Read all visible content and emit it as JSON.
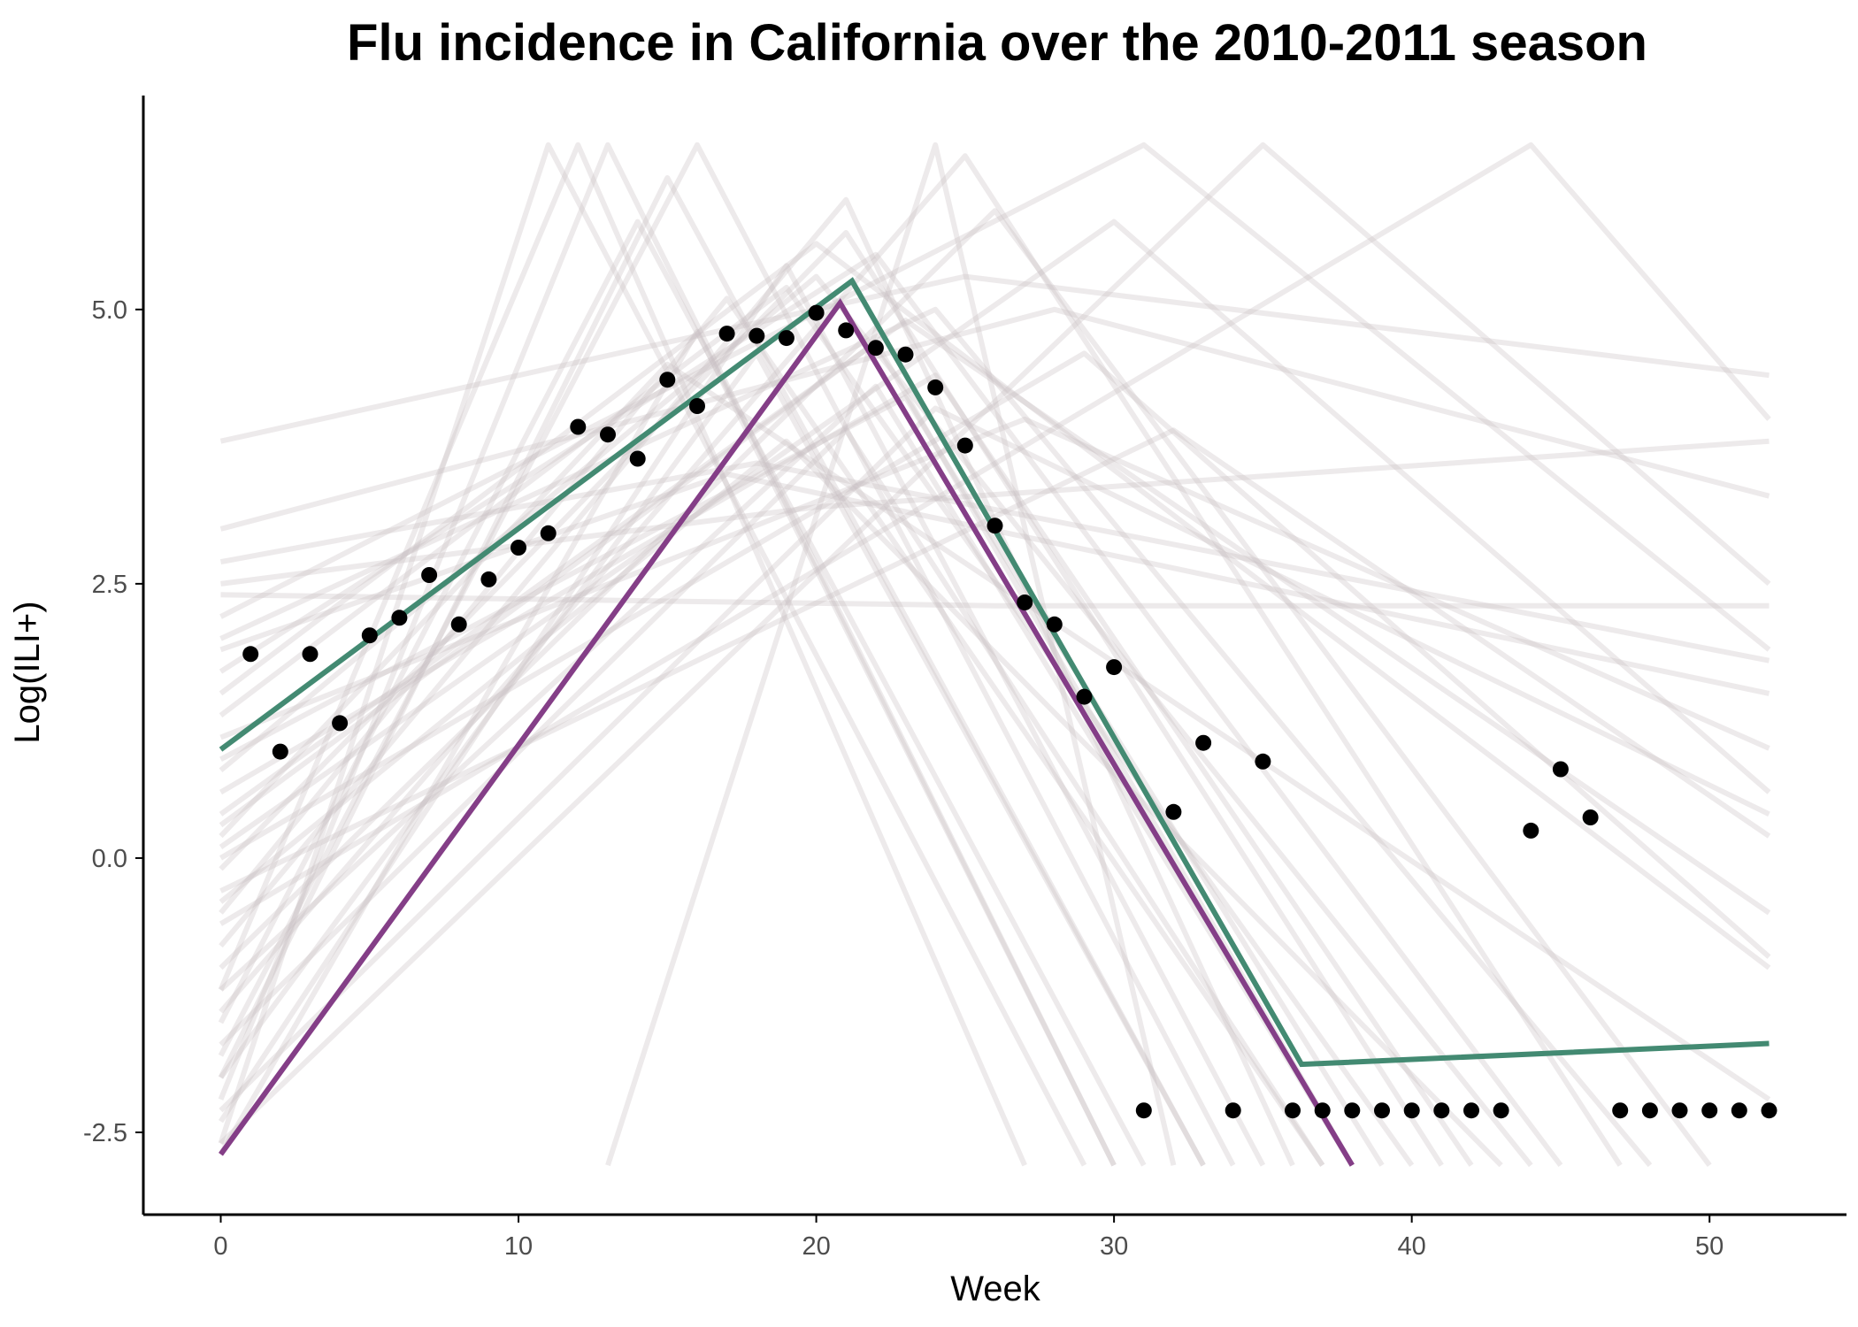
{
  "chart_data": {
    "type": "line",
    "title": "Flu incidence in California over the 2010-2011 season",
    "xlabel": "Week",
    "ylabel": "Log(ILI+)",
    "xlim": [
      -2.6,
      54.6
    ],
    "ylim": [
      -3.25,
      6.95
    ],
    "x_ticks": [
      0,
      10,
      20,
      30,
      40,
      50
    ],
    "x_tick_labels": [
      "0",
      "10",
      "20",
      "30",
      "40",
      "50"
    ],
    "y_ticks": [
      -2.5,
      0,
      2.5,
      5
    ],
    "y_tick_labels": [
      "-2.5",
      "0.0",
      "2.5",
      "5.0"
    ],
    "grid": false,
    "legend": "none",
    "colors": {
      "observed": "#000000",
      "fit_green": "#438a72",
      "fit_purple": "#843e87",
      "samples": "#c8bfc0"
    },
    "series": [
      {
        "kind": "points",
        "color": "#000000",
        "x": [
          1,
          2,
          3,
          4,
          5,
          6,
          7,
          8,
          9,
          10,
          11,
          12,
          13,
          14,
          15,
          16,
          17,
          18,
          19,
          20,
          21,
          22,
          23,
          24,
          25,
          26,
          27,
          28,
          29,
          30,
          31,
          32,
          33,
          34,
          35,
          36,
          37,
          38,
          39,
          40,
          41,
          42,
          43,
          44,
          45,
          46,
          47,
          48,
          49,
          50,
          51,
          52
        ],
        "y": [
          1.86,
          0.97,
          1.86,
          1.23,
          2.03,
          2.19,
          2.58,
          2.13,
          2.54,
          2.83,
          2.96,
          3.93,
          3.86,
          3.64,
          4.36,
          4.12,
          4.78,
          4.76,
          4.74,
          4.97,
          4.81,
          4.65,
          4.59,
          4.29,
          3.76,
          3.03,
          2.33,
          2.13,
          1.47,
          1.74,
          -2.3,
          0.42,
          1.05,
          -2.3,
          0.88,
          -2.3,
          -2.3,
          -2.3,
          -2.3,
          -2.3,
          -2.3,
          -2.3,
          -2.3,
          0.25,
          0.81,
          0.37,
          -2.3,
          -2.3,
          -2.3,
          -2.3,
          -2.3,
          -2.3
        ]
      },
      {
        "kind": "line",
        "color": "#438a72",
        "x": [
          0,
          21.2,
          36.3,
          52
        ],
        "y": [
          0.99,
          5.26,
          -1.88,
          -1.69
        ]
      },
      {
        "kind": "line",
        "color": "#843e87",
        "x": [
          0,
          20.8,
          38
        ],
        "y": [
          -2.7,
          5.06,
          -2.8
        ]
      }
    ],
    "posterior_samples": [
      {
        "x": [
          0,
          17,
          37
        ],
        "y": [
          -0.5,
          5.1,
          -2.8
        ]
      },
      {
        "x": [
          0,
          12,
          27
        ],
        "y": [
          -1.2,
          6.5,
          -2.8
        ]
      },
      {
        "x": [
          0,
          22,
          38
        ],
        "y": [
          0.4,
          4.7,
          -2.8
        ]
      },
      {
        "x": [
          0,
          19,
          40
        ],
        "y": [
          1.3,
          5.2,
          -2.8
        ]
      },
      {
        "x": [
          0,
          15,
          33
        ],
        "y": [
          -2.0,
          6.2,
          -2.8
        ]
      },
      {
        "x": [
          0,
          25,
          52
        ],
        "y": [
          3.8,
          5.3,
          4.4
        ]
      },
      {
        "x": [
          0,
          18,
          52
        ],
        "y": [
          2.7,
          3.6,
          1.8
        ]
      },
      {
        "x": [
          0,
          20,
          52
        ],
        "y": [
          1.5,
          5.6,
          -1.0
        ]
      },
      {
        "x": [
          0,
          26,
          52
        ],
        "y": [
          2.4,
          2.3,
          2.3
        ]
      },
      {
        "x": [
          0,
          30,
          52
        ],
        "y": [
          0.1,
          5.8,
          0.6
        ]
      },
      {
        "x": [
          0,
          24,
          48
        ],
        "y": [
          2.0,
          5.0,
          -2.8
        ]
      },
      {
        "x": [
          0,
          16,
          34
        ],
        "y": [
          -1.8,
          6.5,
          -2.8
        ]
      },
      {
        "x": [
          0,
          21,
          36
        ],
        "y": [
          -0.8,
          6.0,
          -2.8
        ]
      },
      {
        "x": [
          0,
          23,
          39
        ],
        "y": [
          0.9,
          4.2,
          -2.8
        ]
      },
      {
        "x": [
          0,
          11,
          29
        ],
        "y": [
          -2.6,
          6.5,
          -2.8
        ]
      },
      {
        "x": [
          0,
          14,
          31
        ],
        "y": [
          -1.5,
          5.8,
          -2.8
        ]
      },
      {
        "x": [
          0,
          28,
          52
        ],
        "y": [
          3.0,
          5.0,
          3.3
        ]
      },
      {
        "x": [
          0,
          22,
          45
        ],
        "y": [
          1.7,
          5.5,
          -2.8
        ]
      },
      {
        "x": [
          0,
          32,
          52
        ],
        "y": [
          -0.3,
          3.9,
          0.2
        ]
      },
      {
        "x": [
          0,
          19,
          35
        ],
        "y": [
          -2.4,
          5.4,
          -2.8
        ]
      },
      {
        "x": [
          0,
          24,
          42
        ],
        "y": [
          0.6,
          4.4,
          -2.8
        ]
      },
      {
        "x": [
          0,
          20,
          52
        ],
        "y": [
          2.5,
          3.2,
          3.8
        ]
      },
      {
        "x": [
          0,
          17,
          52
        ],
        "y": [
          1.9,
          3.5,
          1.5
        ]
      },
      {
        "x": [
          0,
          26,
          50
        ],
        "y": [
          -1.0,
          5.9,
          -2.8
        ]
      },
      {
        "x": [
          0,
          13,
          30
        ],
        "y": [
          -2.2,
          6.5,
          -2.8
        ]
      },
      {
        "x": [
          0,
          35,
          52
        ],
        "y": [
          -2.6,
          6.5,
          2.5
        ]
      },
      {
        "x": [
          0,
          44,
          52
        ],
        "y": [
          -0.6,
          6.5,
          4.0
        ]
      },
      {
        "x": [
          0,
          21,
          41
        ],
        "y": [
          -0.1,
          5.7,
          -2.8
        ]
      },
      {
        "x": [
          0,
          25,
          47
        ],
        "y": [
          -1.4,
          6.4,
          -2.8
        ]
      },
      {
        "x": [
          0,
          18,
          33
        ],
        "y": [
          -2.0,
          4.6,
          -2.8
        ]
      },
      {
        "x": [
          0,
          23,
          52
        ],
        "y": [
          0.3,
          4.9,
          -0.5
        ]
      },
      {
        "x": [
          0,
          27,
          52
        ],
        "y": [
          1.1,
          4.0,
          1.0
        ]
      },
      {
        "x": [
          0,
          16,
          30
        ],
        "y": [
          -2.7,
          4.8,
          -2.8
        ]
      },
      {
        "x": [
          0,
          22,
          38
        ],
        "y": [
          -1.2,
          4.3,
          -2.8
        ]
      },
      {
        "x": [
          0,
          29,
          52
        ],
        "y": [
          0.0,
          4.6,
          -0.9
        ]
      },
      {
        "x": [
          0,
          20,
          44
        ],
        "y": [
          0.8,
          5.3,
          -2.8
        ]
      },
      {
        "x": [
          13,
          24,
          32
        ],
        "y": [
          -2.8,
          6.5,
          -2.8
        ]
      },
      {
        "x": [
          0,
          19,
          43
        ],
        "y": [
          -0.4,
          3.8,
          -2.8
        ]
      },
      {
        "x": [
          0,
          31,
          52
        ],
        "y": [
          2.2,
          6.5,
          1.9
        ]
      },
      {
        "x": [
          0,
          21,
          37
        ],
        "y": [
          -1.7,
          3.9,
          -2.8
        ]
      },
      {
        "x": [
          0,
          15,
          52
        ],
        "y": [
          0.2,
          4.5,
          -2.2
        ]
      },
      {
        "x": [
          0,
          24,
          52
        ],
        "y": [
          -2.3,
          4.1,
          0.4
        ]
      }
    ]
  }
}
